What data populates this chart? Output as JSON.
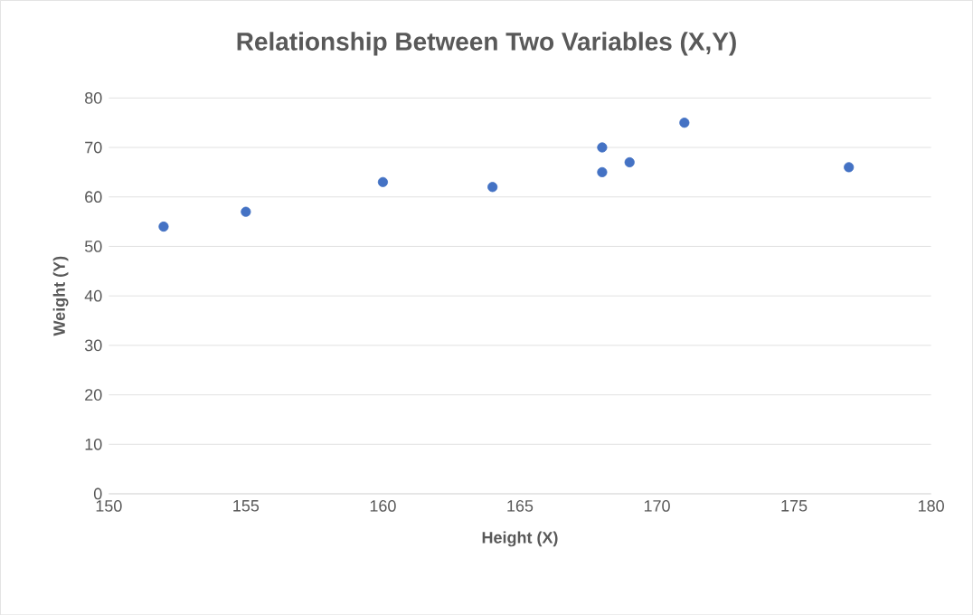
{
  "chart_data": {
    "type": "scatter",
    "title": "Relationship Between Two Variables (X,Y)",
    "xlabel": "Height (X)",
    "ylabel": "Weight (Y)",
    "x": [
      152,
      155,
      160,
      164,
      168,
      168,
      169,
      171,
      177
    ],
    "values": [
      54,
      57,
      63,
      62,
      70,
      65,
      67,
      75,
      66
    ],
    "color": "#4472c4",
    "marker": "circle",
    "xlim": [
      150,
      180
    ],
    "xticks": [
      150,
      155,
      160,
      165,
      170,
      175,
      180
    ],
    "ylim": [
      0,
      80
    ],
    "yticks": [
      0,
      10,
      20,
      30,
      40,
      50,
      60,
      70,
      80
    ],
    "grid": "y"
  }
}
